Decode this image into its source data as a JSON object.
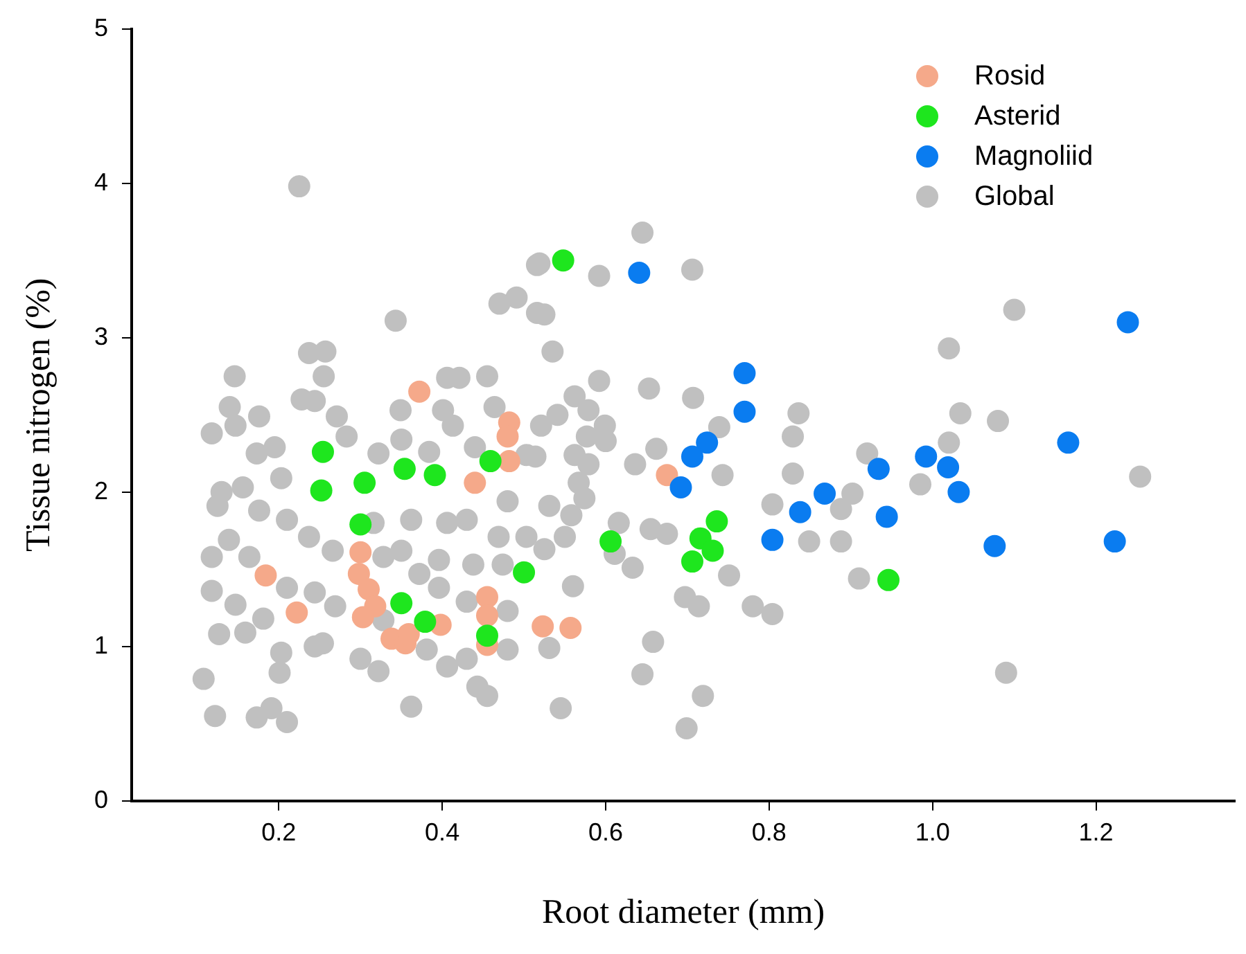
{
  "chart_data": {
    "type": "scatter",
    "xlabel": "Root diameter (mm)",
    "ylabel": "Tissue nitrogen (%)",
    "xlim": [
      0.02,
      1.37
    ],
    "ylim": [
      0,
      5
    ],
    "xticks": [
      0.2,
      0.4,
      0.6,
      0.8,
      {
        "value": 1,
        "label": "1.0"
      },
      1.2
    ],
    "yticks": [
      0,
      1,
      2,
      3,
      4,
      5
    ],
    "grid": false,
    "legend": "top right",
    "marker": "circle",
    "series": [
      {
        "name": "Rosid",
        "color": "#f5a98a",
        "x": [
          0.372,
          0.482,
          0.48,
          0.482,
          0.44,
          0.3,
          0.298,
          0.31,
          0.318,
          0.303,
          0.184,
          0.222,
          0.398,
          0.338,
          0.355,
          0.359,
          0.455,
          0.455,
          0.455,
          0.523,
          0.557,
          0.675
        ],
        "values": [
          2.65,
          2.45,
          2.36,
          2.2,
          2.06,
          1.61,
          1.47,
          1.37,
          1.26,
          1.19,
          1.46,
          1.22,
          1.14,
          1.05,
          1.02,
          1.08,
          1.32,
          1.2,
          1.01,
          1.13,
          1.12,
          2.11
        ]
      },
      {
        "name": "Asterid",
        "color": "#1ee61e",
        "x": [
          0.254,
          0.252,
          0.305,
          0.354,
          0.391,
          0.459,
          0.3,
          0.35,
          0.379,
          0.455,
          0.5,
          0.548,
          0.606,
          0.736,
          0.716,
          0.731,
          0.706,
          0.946
        ],
        "values": [
          2.26,
          2.01,
          2.06,
          2.15,
          2.11,
          2.2,
          1.79,
          1.28,
          1.16,
          1.07,
          1.48,
          3.5,
          1.68,
          1.81,
          1.7,
          1.62,
          1.55,
          1.43
        ]
      },
      {
        "name": "Magnoliid",
        "color": "#0a7cf0",
        "x": [
          0.641,
          0.77,
          0.77,
          0.724,
          0.706,
          0.692,
          0.804,
          0.838,
          0.868,
          0.934,
          0.944,
          0.992,
          1.019,
          1.032,
          1.076,
          1.166,
          1.239,
          1.223
        ],
        "values": [
          3.42,
          2.77,
          2.52,
          2.32,
          2.23,
          2.03,
          1.69,
          1.87,
          1.99,
          2.15,
          1.84,
          2.23,
          2.16,
          2.0,
          1.65,
          2.32,
          3.1,
          1.68
        ]
      },
      {
        "name": "Global",
        "color": "#c0c0c0",
        "x": [
          0.225,
          0.343,
          0.237,
          0.257,
          0.255,
          0.146,
          0.14,
          0.118,
          0.147,
          0.176,
          0.228,
          0.244,
          0.271,
          0.349,
          0.406,
          0.421,
          0.455,
          0.464,
          0.401,
          0.413,
          0.47,
          0.491,
          0.516,
          0.516,
          0.35,
          0.384,
          0.322,
          0.283,
          0.195,
          0.173,
          0.13,
          0.156,
          0.203,
          0.44,
          0.503,
          0.125,
          0.176,
          0.21,
          0.237,
          0.139,
          0.118,
          0.164,
          0.266,
          0.21,
          0.118,
          0.147,
          0.181,
          0.244,
          0.269,
          0.127,
          0.159,
          0.203,
          0.244,
          0.254,
          0.108,
          0.201,
          0.122,
          0.173,
          0.191,
          0.21,
          0.3,
          0.322,
          0.362,
          0.328,
          0.35,
          0.372,
          0.396,
          0.396,
          0.328,
          0.381,
          0.406,
          0.43,
          0.443,
          0.455,
          0.43,
          0.48,
          0.48,
          0.43,
          0.469,
          0.474,
          0.438,
          0.406,
          0.362,
          0.316,
          0.503,
          0.48,
          0.645,
          0.592,
          0.706,
          0.519,
          0.525,
          0.535,
          0.592,
          0.562,
          0.579,
          0.541,
          0.521,
          0.599,
          0.653,
          0.707,
          0.577,
          0.6,
          0.662,
          0.739,
          0.562,
          0.579,
          0.636,
          0.514,
          0.567,
          0.574,
          0.531,
          0.558,
          0.743,
          0.616,
          0.655,
          0.675,
          0.55,
          0.525,
          0.611,
          0.633,
          0.56,
          0.751,
          0.804,
          0.829,
          0.829,
          0.836,
          0.849,
          0.888,
          0.888,
          0.902,
          0.92,
          0.91,
          0.78,
          0.804,
          0.697,
          0.714,
          0.658,
          0.645,
          0.719,
          0.699,
          0.545,
          0.531,
          1.1,
          1.02,
          1.034,
          1.08,
          1.02,
          0.985,
          1.254,
          1.09
        ],
        "values": [
          3.98,
          3.11,
          2.9,
          2.91,
          2.75,
          2.75,
          2.55,
          2.38,
          2.43,
          2.49,
          2.6,
          2.59,
          2.49,
          2.53,
          2.74,
          2.74,
          2.75,
          2.55,
          2.53,
          2.43,
          3.22,
          3.26,
          3.47,
          3.16,
          2.34,
          2.26,
          2.25,
          2.36,
          2.29,
          2.25,
          2.0,
          2.03,
          2.09,
          2.29,
          2.24,
          1.91,
          1.88,
          1.82,
          1.71,
          1.69,
          1.58,
          1.58,
          1.62,
          1.38,
          1.36,
          1.27,
          1.18,
          1.35,
          1.26,
          1.08,
          1.09,
          0.96,
          1.0,
          1.02,
          0.79,
          0.83,
          0.55,
          0.54,
          0.6,
          0.51,
          0.92,
          0.84,
          0.61,
          1.58,
          1.62,
          1.47,
          1.38,
          1.56,
          1.17,
          0.98,
          0.87,
          0.92,
          0.74,
          0.68,
          1.29,
          0.98,
          1.23,
          1.82,
          1.71,
          1.53,
          1.53,
          1.8,
          1.82,
          1.8,
          1.71,
          1.94,
          3.68,
          3.4,
          3.44,
          3.48,
          3.15,
          2.91,
          2.72,
          2.62,
          2.53,
          2.5,
          2.43,
          2.43,
          2.67,
          2.61,
          2.36,
          2.33,
          2.28,
          2.42,
          2.24,
          2.18,
          2.18,
          2.23,
          2.06,
          1.96,
          1.91,
          1.85,
          2.11,
          1.8,
          1.76,
          1.73,
          1.71,
          1.63,
          1.6,
          1.51,
          1.39,
          1.46,
          1.92,
          2.12,
          2.36,
          2.51,
          1.68,
          1.68,
          1.89,
          1.99,
          2.25,
          1.44,
          1.26,
          1.21,
          1.32,
          1.26,
          1.03,
          0.82,
          0.68,
          0.47,
          0.6,
          0.99,
          3.18,
          2.93,
          2.51,
          2.46,
          2.32,
          2.05,
          2.1,
          0.83
        ]
      }
    ]
  }
}
